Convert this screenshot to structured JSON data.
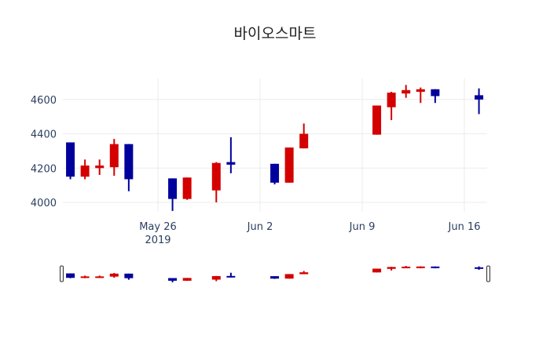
{
  "chart_data": {
    "type": "candlestick",
    "title": "바이오스마트",
    "xlabel": "",
    "ylabel": "",
    "ylim": [
      3945,
      4723
    ],
    "yticks": [
      4000,
      4200,
      4400,
      4600
    ],
    "xticks": [
      {
        "date": "2019-05-26",
        "label": "May 26",
        "sublabel": "2019"
      },
      {
        "date": "2019-06-02",
        "label": "Jun 2",
        "sublabel": ""
      },
      {
        "date": "2019-06-09",
        "label": "Jun 9",
        "sublabel": ""
      },
      {
        "date": "2019-06-16",
        "label": "Jun 16",
        "sublabel": ""
      }
    ],
    "grid": true,
    "legend": false,
    "rangeslider": true,
    "colors": {
      "increasing": "#d40000",
      "decreasing": "#00009c",
      "grid": "#ebebeb"
    },
    "candles": [
      {
        "date": "2019-05-20",
        "open": 4350,
        "high": 4350,
        "low": 4135,
        "close": 4150
      },
      {
        "date": "2019-05-21",
        "open": 4150,
        "high": 4250,
        "low": 4135,
        "close": 4215
      },
      {
        "date": "2019-05-22",
        "open": 4200,
        "high": 4250,
        "low": 4160,
        "close": 4215
      },
      {
        "date": "2019-05-23",
        "open": 4205,
        "high": 4370,
        "low": 4155,
        "close": 4340
      },
      {
        "date": "2019-05-24",
        "open": 4340,
        "high": 4340,
        "low": 4065,
        "close": 4135
      },
      {
        "date": "2019-05-27",
        "open": 4140,
        "high": 4140,
        "low": 3950,
        "close": 4020
      },
      {
        "date": "2019-05-28",
        "open": 4020,
        "high": 4145,
        "low": 4015,
        "close": 4145
      },
      {
        "date": "2019-05-30",
        "open": 4070,
        "high": 4235,
        "low": 4000,
        "close": 4230
      },
      {
        "date": "2019-05-31",
        "open": 4235,
        "high": 4380,
        "low": 4170,
        "close": 4220
      },
      {
        "date": "2019-06-03",
        "open": 4225,
        "high": 4225,
        "low": 4105,
        "close": 4115
      },
      {
        "date": "2019-06-04",
        "open": 4115,
        "high": 4320,
        "low": 4115,
        "close": 4320
      },
      {
        "date": "2019-06-05",
        "open": 4315,
        "high": 4460,
        "low": 4315,
        "close": 4400
      },
      {
        "date": "2019-06-10",
        "open": 4395,
        "high": 4565,
        "low": 4395,
        "close": 4565
      },
      {
        "date": "2019-06-11",
        "open": 4555,
        "high": 4645,
        "low": 4480,
        "close": 4640
      },
      {
        "date": "2019-06-12",
        "open": 4635,
        "high": 4685,
        "low": 4610,
        "close": 4655
      },
      {
        "date": "2019-06-13",
        "open": 4645,
        "high": 4670,
        "low": 4580,
        "close": 4660
      },
      {
        "date": "2019-06-14",
        "open": 4660,
        "high": 4660,
        "low": 4580,
        "close": 4620
      },
      {
        "date": "2019-06-17",
        "open": 4625,
        "high": 4665,
        "low": 4515,
        "close": 4600
      }
    ]
  }
}
